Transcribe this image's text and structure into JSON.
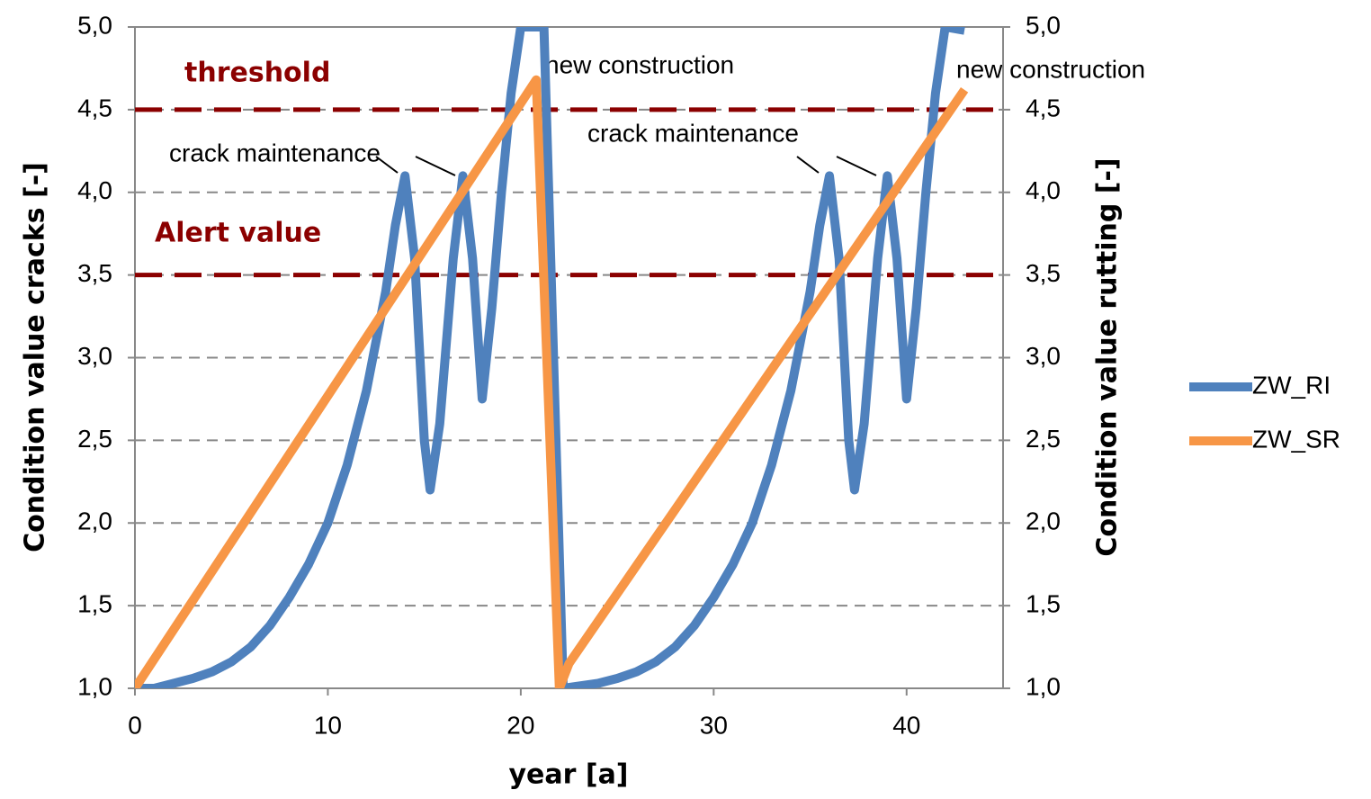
{
  "chart_data": {
    "type": "line",
    "xlabel": "year [a]",
    "ylabel": "Condition value cracks [-]",
    "y2label": "Condition value rutting [-]",
    "xlim": [
      0,
      45
    ],
    "xticks": [
      0,
      10,
      20,
      30,
      40
    ],
    "ylim": [
      1,
      5
    ],
    "yticks": [
      {
        "value": 1,
        "label": "1,0"
      },
      {
        "value": 1.5,
        "label": "1,5"
      },
      {
        "value": 2,
        "label": "2,0"
      },
      {
        "value": 2.5,
        "label": "2,5"
      },
      {
        "value": 3,
        "label": "3,0"
      },
      {
        "value": 3.5,
        "label": "3,5"
      },
      {
        "value": 4,
        "label": "4,0"
      },
      {
        "value": 4.5,
        "label": "4,5"
      },
      {
        "value": 5,
        "label": "5,0"
      }
    ],
    "y2lim": [
      1,
      5
    ],
    "y2ticks": [
      {
        "value": 1,
        "label": "1,0"
      },
      {
        "value": 1.5,
        "label": "1,5"
      },
      {
        "value": 2,
        "label": "2,0"
      },
      {
        "value": 2.5,
        "label": "2,5"
      },
      {
        "value": 3,
        "label": "3,0"
      },
      {
        "value": 3.5,
        "label": "3,5"
      },
      {
        "value": 4,
        "label": "4,0"
      },
      {
        "value": 4.5,
        "label": "4,5"
      },
      {
        "value": 5,
        "label": "5,0"
      }
    ],
    "grid": true,
    "legend": "right",
    "reference_lines": [
      {
        "label": "threshold",
        "value": 4.5,
        "color": "#8b0000"
      },
      {
        "label": "Alert value",
        "value": 3.5,
        "color": "#8b0000"
      }
    ],
    "annotations": [
      "crack maintenance",
      "crack maintenance",
      "new construction",
      "new construction"
    ],
    "series": [
      {
        "name": "ZW_RI",
        "color": "#4f81bd",
        "x": [
          0,
          1,
          2,
          3,
          4,
          5,
          6,
          7,
          8,
          9,
          10,
          11,
          12,
          13,
          13.5,
          14,
          14.5,
          15,
          15.3,
          15.8,
          16.5,
          17,
          17.5,
          18,
          18.5,
          19,
          19.5,
          20,
          21.2,
          22.2,
          24,
          25,
          26,
          27,
          28,
          29,
          30,
          31,
          32,
          33,
          34,
          35,
          35.5,
          36,
          36.5,
          37,
          37.3,
          37.8,
          38.5,
          39,
          39.5,
          40,
          40.5,
          41,
          41.5,
          42,
          43
        ],
        "values": [
          1.0,
          1.0,
          1.03,
          1.06,
          1.1,
          1.16,
          1.25,
          1.38,
          1.55,
          1.75,
          2.0,
          2.35,
          2.8,
          3.4,
          3.8,
          4.1,
          3.6,
          2.5,
          2.2,
          2.6,
          3.6,
          4.1,
          3.6,
          2.75,
          3.3,
          4.0,
          4.6,
          5.0,
          5.0,
          1.0,
          1.03,
          1.06,
          1.1,
          1.16,
          1.25,
          1.38,
          1.55,
          1.75,
          2.0,
          2.35,
          2.8,
          3.4,
          3.8,
          4.1,
          3.6,
          2.5,
          2.2,
          2.6,
          3.6,
          4.1,
          3.6,
          2.75,
          3.3,
          4.0,
          4.6,
          5.0,
          4.98
        ]
      },
      {
        "name": "ZW_SR",
        "color": "#f79646",
        "axis": "y2",
        "x": [
          0,
          20.8,
          22,
          22.5,
          43
        ],
        "values": [
          1.0,
          4.68,
          1.0,
          1.15,
          4.62
        ]
      }
    ]
  }
}
